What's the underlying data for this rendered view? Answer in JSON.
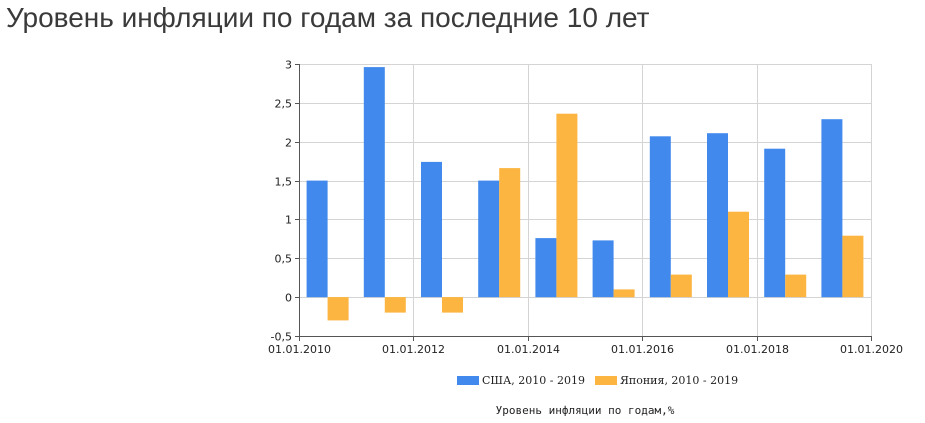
{
  "page": {
    "title": "Уровень инфляции по годам за последние 10 лет"
  },
  "chart_data": {
    "type": "bar",
    "xlabel": "Уровень инфляции по годам,%",
    "ylabel": "",
    "ylim": [
      -0.5,
      3
    ],
    "y_ticks": [
      3,
      2.5,
      2,
      1.5,
      1,
      0.5,
      0,
      -0.5
    ],
    "y_tick_labels": [
      "3",
      "2,5",
      "2",
      "1,5",
      "1",
      "0,5",
      "0",
      "-0,5"
    ],
    "x_ticks": [
      2010,
      2012,
      2014,
      2016,
      2018,
      2020
    ],
    "x_tick_labels": [
      "01.01.2010",
      "01.01.2012",
      "01.01.2014",
      "01.01.2016",
      "01.01.2018",
      "01.01.2020"
    ],
    "categories": [
      2010,
      2011,
      2012,
      2013,
      2014,
      2015,
      2016,
      2017,
      2018,
      2019
    ],
    "series": [
      {
        "name": "США, 2010 - 2019",
        "color": "#4189ec",
        "values": [
          1.5,
          2.96,
          1.74,
          1.5,
          0.76,
          0.73,
          2.07,
          2.11,
          1.91,
          2.29
        ]
      },
      {
        "name": "Япония, 2010 - 2019",
        "color": "#fbb540",
        "values": [
          -0.3,
          -0.2,
          -0.2,
          1.66,
          2.36,
          0.1,
          0.29,
          1.1,
          0.29,
          0.79
        ]
      }
    ],
    "grid": true,
    "legend_position": "bottom"
  }
}
